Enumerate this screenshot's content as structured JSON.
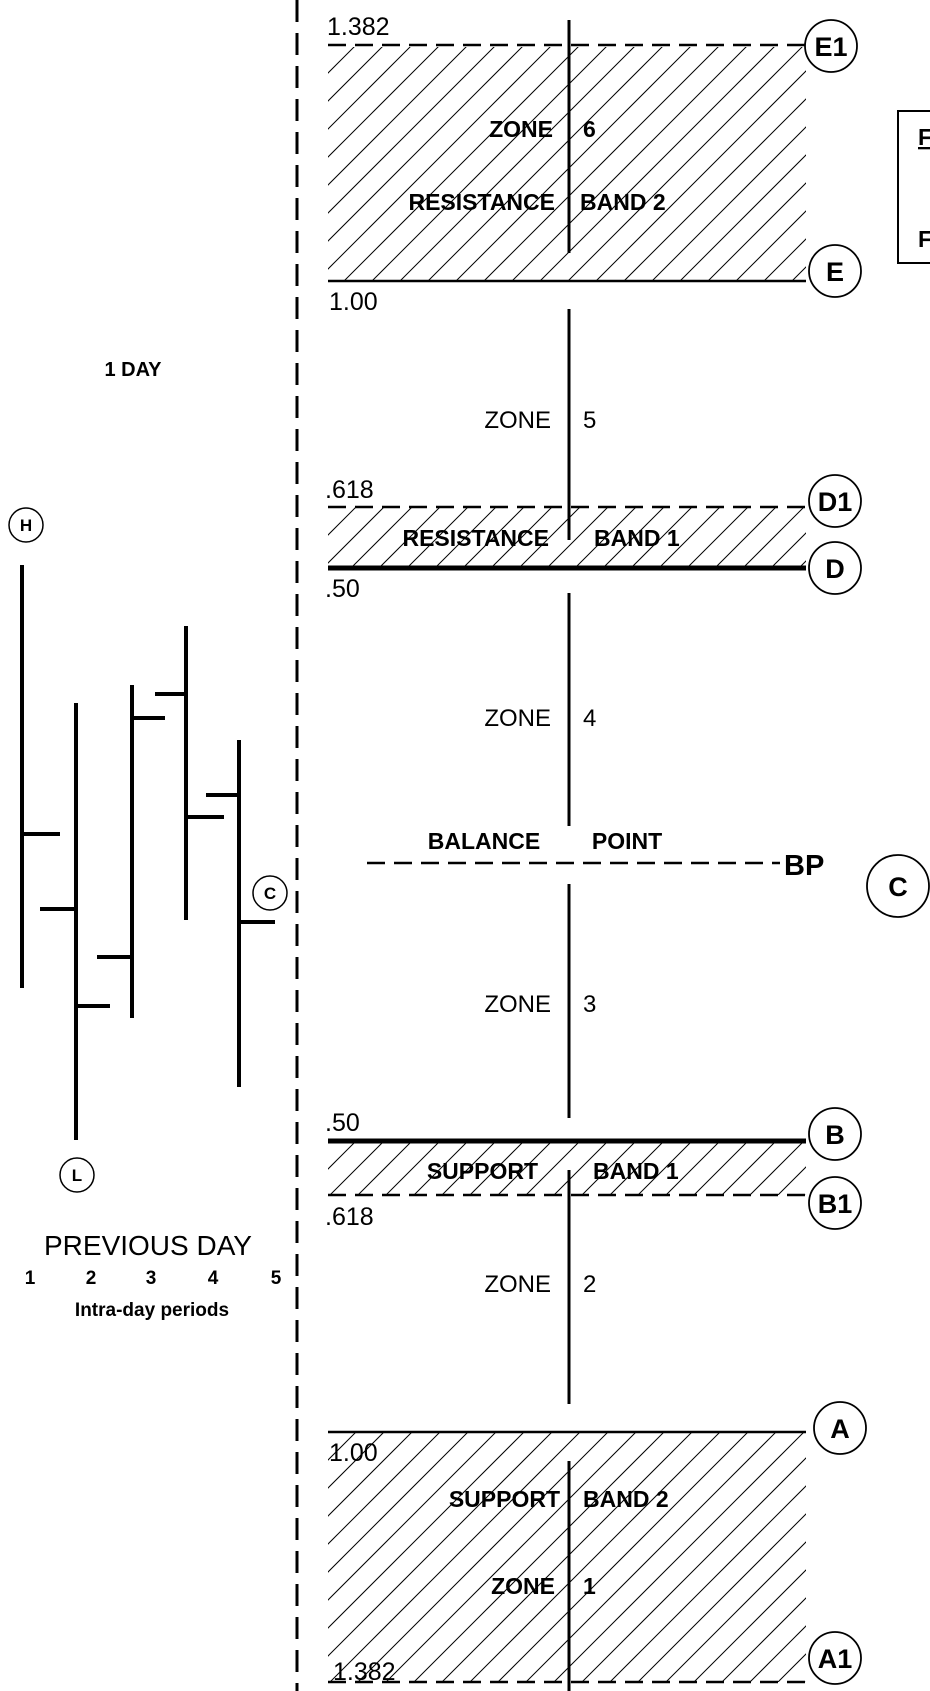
{
  "left_panel": {
    "period_label": "1 DAY",
    "prev_day_label": "PREVIOUS DAY",
    "period_numbers": [
      "1",
      "2",
      "3",
      "4",
      "5"
    ],
    "periods_caption": "Intra-day periods",
    "marker_high": "H",
    "marker_low": "L",
    "marker_close": "C"
  },
  "levels": {
    "e1": ".382",
    "e1_prefix": "1",
    "e": "1.00",
    "d1": ".618",
    "d": ".50",
    "b": ".50",
    "b1": ".618",
    "a": "1.00",
    "a1": "1.382"
  },
  "bands": {
    "res2_left": "RESISTANCE",
    "res2_right": "BAND 2",
    "res1_left": "RESISTANCE",
    "res1_right": "BAND 1",
    "sup1_left": "SUPPORT",
    "sup1_right": "BAND 1",
    "sup2_left": "SUPPORT",
    "sup2_right": "BAND 2"
  },
  "zones": {
    "word": "ZONE",
    "z6": "6",
    "z5": "5",
    "z4": "4",
    "z3": "3",
    "z2": "2",
    "z1": "1"
  },
  "balance": {
    "left": "BALANCE",
    "right": "POINT",
    "tag": "BP",
    "marker": "C"
  },
  "markers": {
    "e1": "E1",
    "e": "E",
    "d1": "D1",
    "d": "D",
    "b": "B",
    "b1": "B1",
    "a": "A",
    "a1": "A1"
  },
  "legend_box": {
    "line1": "F",
    "line2": "F"
  }
}
